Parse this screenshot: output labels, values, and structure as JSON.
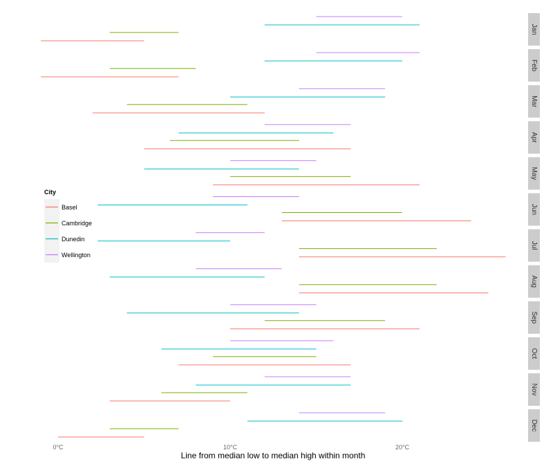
{
  "chart_data": {
    "type": "range-line",
    "facet_by": "month",
    "months": [
      "Jan",
      "Feb",
      "Mar",
      "Apr",
      "May",
      "Jun",
      "Jul",
      "Aug",
      "Sep",
      "Oct",
      "Nov",
      "Dec"
    ],
    "xlabel": "Line from median low to median high within month",
    "x_ticks": [
      {
        "value": 0,
        "label": "0°C"
      },
      {
        "value": 10,
        "label": "10°C"
      },
      {
        "value": 20,
        "label": "20°C"
      }
    ],
    "xlim": [
      -1,
      27
    ],
    "legend": {
      "title": "City",
      "position": "left-middle"
    },
    "grid": false,
    "series": [
      {
        "name": "Basel",
        "color": "#F8766D",
        "low": [
          -1,
          -1,
          2,
          5,
          9,
          13,
          14,
          14,
          10,
          7,
          3,
          0
        ],
        "high": [
          5,
          7,
          12,
          17,
          21,
          24,
          26,
          25,
          21,
          17,
          10,
          5
        ]
      },
      {
        "name": "Cambridge",
        "color": "#7CAE00",
        "low": [
          3,
          3,
          4,
          6.5,
          10,
          13,
          14,
          14,
          12,
          9,
          6,
          3
        ],
        "high": [
          7,
          8,
          11,
          14,
          17,
          20,
          22,
          22,
          19,
          15,
          11,
          7
        ]
      },
      {
        "name": "Dunedin",
        "color": "#00BFC4",
        "low": [
          12,
          12,
          10,
          7,
          5,
          2.3,
          2.3,
          3,
          4,
          6,
          8,
          11
        ],
        "high": [
          21,
          20,
          19,
          16,
          14,
          11,
          10,
          12,
          14,
          15,
          17,
          20
        ]
      },
      {
        "name": "Wellington",
        "color": "#C77CFF",
        "low": [
          15,
          15,
          14,
          12,
          10,
          9,
          8,
          8,
          10,
          10,
          12,
          14
        ],
        "high": [
          20,
          21,
          19,
          17,
          15,
          14,
          12,
          13,
          15,
          16,
          17,
          19
        ]
      }
    ]
  }
}
